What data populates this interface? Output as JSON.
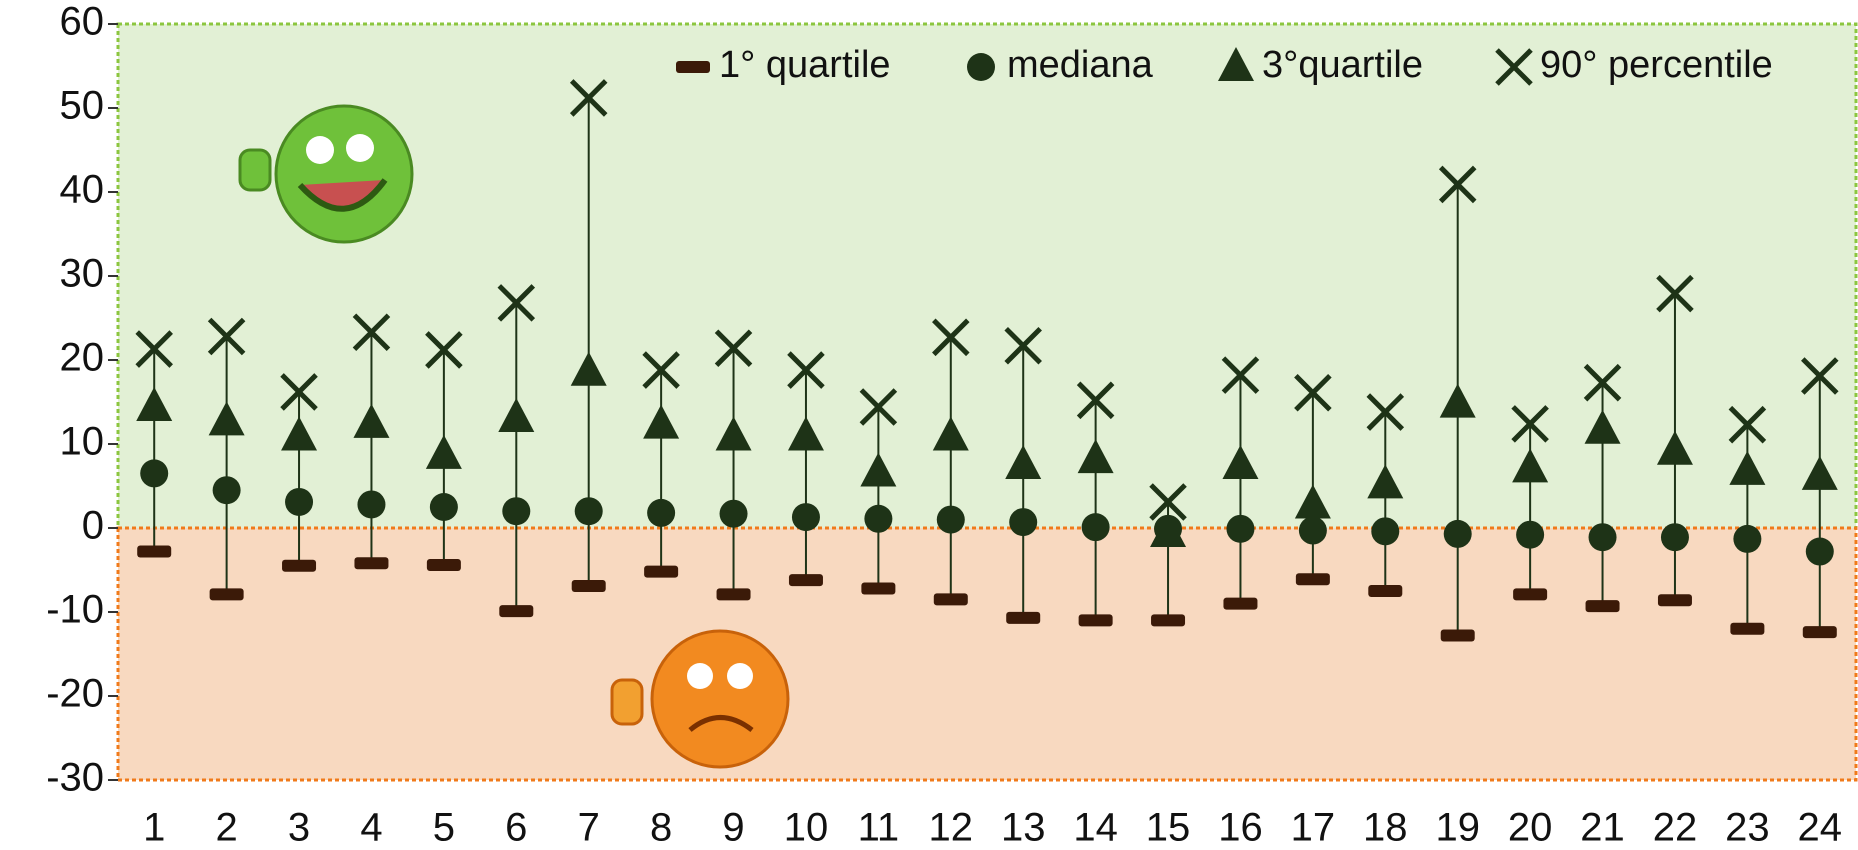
{
  "chart_data": {
    "type": "quantile",
    "categories": [
      "1",
      "2",
      "3",
      "4",
      "5",
      "6",
      "7",
      "8",
      "9",
      "10",
      "11",
      "12",
      "13",
      "14",
      "15",
      "16",
      "17",
      "18",
      "19",
      "20",
      "21",
      "22",
      "23",
      "24"
    ],
    "series": [
      {
        "name": "1° quartile",
        "color": "#3b1a08",
        "values": [
          -2.8,
          -7.9,
          -4.5,
          -4.2,
          -4.4,
          -9.9,
          -6.9,
          -5.2,
          -7.9,
          -6.2,
          -7.2,
          -8.5,
          -10.7,
          -11.0,
          -11.0,
          -9.0,
          -6.1,
          -7.5,
          -12.8,
          -7.9,
          -9.3,
          -8.6,
          -12.0,
          -12.4
        ]
      },
      {
        "name": "mediana",
        "color": "#1e3317",
        "values": [
          6.5,
          4.5,
          3.1,
          2.8,
          2.5,
          2.0,
          2.0,
          1.8,
          1.7,
          1.3,
          1.1,
          1.0,
          0.7,
          0.1,
          -0.1,
          -0.1,
          -0.3,
          -0.4,
          -0.7,
          -0.8,
          -1.1,
          -1.1,
          -1.3,
          -2.8
        ]
      },
      {
        "name": "3°quartile",
        "color": "#1e3317",
        "values": [
          14.4,
          12.7,
          10.9,
          12.4,
          8.7,
          13.1,
          18.6,
          12.3,
          10.9,
          10.9,
          6.6,
          10.9,
          7.5,
          8.2,
          -0.6,
          7.5,
          2.8,
          5.2,
          14.8,
          7.1,
          11.7,
          9.2,
          6.8,
          6.2
        ]
      },
      {
        "name": "90° percentile",
        "color": "#1e3317",
        "values": [
          21.3,
          22.8,
          16.2,
          23.3,
          21.2,
          26.8,
          51.2,
          18.8,
          21.4,
          18.8,
          14.4,
          22.7,
          21.7,
          15.2,
          3.1,
          18.2,
          16.1,
          13.8,
          40.9,
          12.4,
          17.3,
          27.9,
          12.3,
          18.1
        ]
      }
    ],
    "ylim": [
      -30,
      60
    ],
    "yticks": [
      -30,
      -20,
      -10,
      0,
      10,
      20,
      30,
      40,
      50,
      60
    ],
    "positive_color": "#e2f0d5",
    "negative_color": "#f8d9c0"
  }
}
